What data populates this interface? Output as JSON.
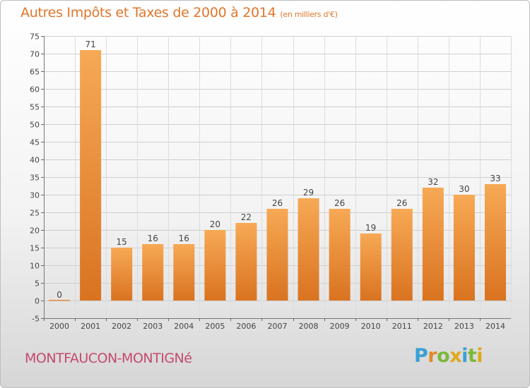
{
  "header": {
    "title": "Autres Impôts et Taxes de 2000 à 2014",
    "subtitle": "(en milliers d'€)"
  },
  "footer": {
    "city": "MONTFAUCON-MONTIGNé",
    "logo_letters": [
      {
        "char": "P",
        "color": "#3aa0d8"
      },
      {
        "char": "r",
        "color": "#e08a2a"
      },
      {
        "char": "o",
        "color": "#7cb83a"
      },
      {
        "char": "x",
        "color": "#e0a81a"
      },
      {
        "char": "i",
        "color": "#3aa0d8"
      },
      {
        "char": "t",
        "color": "#7cb83a"
      },
      {
        "char": "i",
        "color": "#e0a81a"
      }
    ]
  },
  "colors": {
    "title": "#e0762a",
    "city": "#c44a6e",
    "bar_light": "#f7a955",
    "bar_dark": "#d97320"
  },
  "chart_data": {
    "type": "bar",
    "title": "Autres Impôts et Taxes de 2000 à 2014",
    "subtitle": "(en milliers d'€)",
    "categories": [
      "2000",
      "2001",
      "2002",
      "2003",
      "2004",
      "2005",
      "2006",
      "2007",
      "2008",
      "2009",
      "2010",
      "2011",
      "2012",
      "2013",
      "2014"
    ],
    "values": [
      0,
      71,
      15,
      16,
      16,
      20,
      22,
      26,
      29,
      26,
      19,
      26,
      32,
      30,
      33
    ],
    "ylim": [
      -5,
      75
    ],
    "yticks": [
      -5,
      0,
      5,
      10,
      15,
      20,
      25,
      30,
      35,
      40,
      45,
      50,
      55,
      60,
      65,
      70,
      75
    ],
    "grid": true,
    "xlabel": "",
    "ylabel": ""
  }
}
